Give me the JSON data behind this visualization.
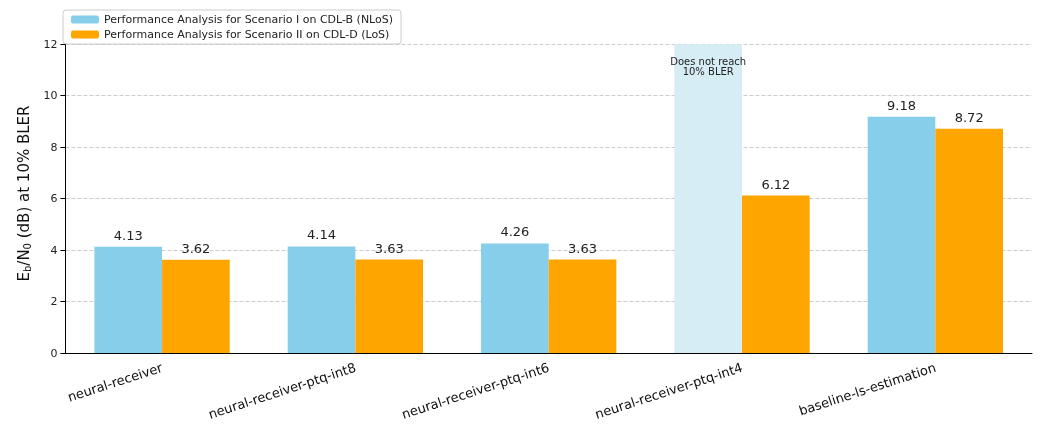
{
  "chart_data": {
    "type": "bar",
    "ylabel": "E$_{b}$/N$_{0}$ (dB) at 10% BLER",
    "categories": [
      "neural-receiver",
      "neural-receiver-ptq-int8",
      "neural-receiver-ptq-int6",
      "neural-receiver-ptq-int4",
      "baseline-ls-estimation"
    ],
    "series": [
      {
        "name": "Performance Analysis for Scenario I on CDL-B (NLoS)",
        "color": "#87ceeb",
        "colors": [
          "#87ceeb",
          "#87ceeb",
          "#87ceeb",
          "#d7edf6",
          "#87ceeb"
        ],
        "values": [
          4.13,
          4.14,
          4.26,
          12,
          9.18
        ],
        "value_labels": [
          "4.13",
          "4.14",
          "4.26",
          null,
          "9.18"
        ]
      },
      {
        "name": "Performance Analysis for Scenario II on CDL-D (LoS)",
        "color": "#ffa500",
        "values": [
          3.62,
          3.63,
          3.63,
          6.12,
          8.72
        ],
        "value_labels": [
          "3.62",
          "3.63",
          "3.63",
          "6.12",
          "8.72"
        ]
      }
    ],
    "annotations": [
      {
        "text": "Does not reach\n10% BLER",
        "x": "neural-receiver-ptq-int4",
        "y": 12
      }
    ],
    "ylim": [
      0,
      12.4
    ],
    "yticks": [
      0,
      2,
      4,
      6,
      8,
      10,
      12
    ],
    "grid": "y",
    "legend": "top left"
  }
}
